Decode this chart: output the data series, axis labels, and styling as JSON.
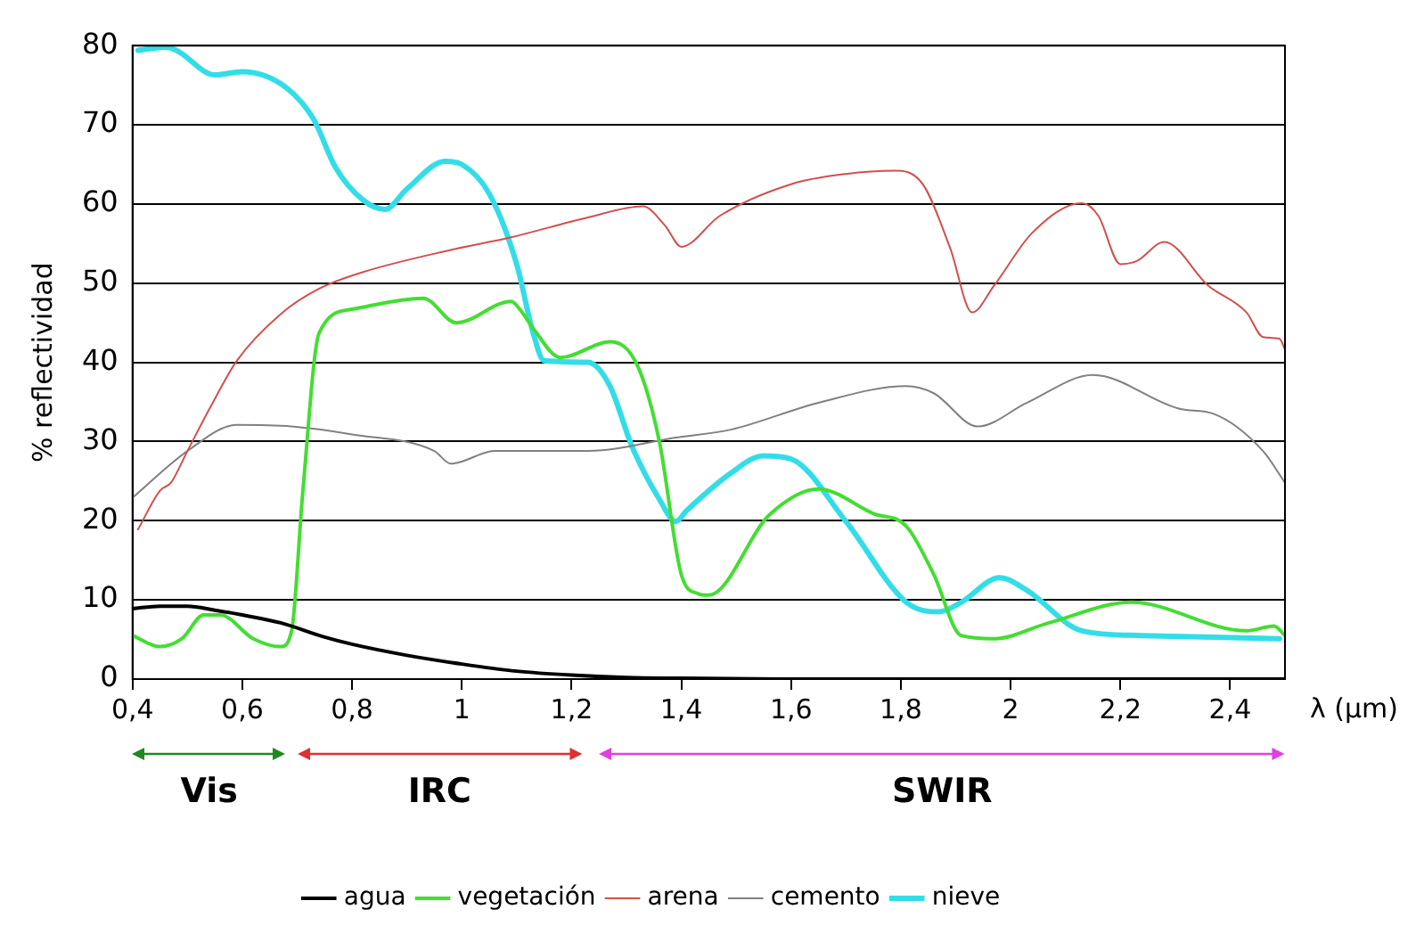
{
  "chart_data": {
    "type": "line",
    "ylabel": "% reflectividad",
    "xlabel": "λ (μm)",
    "xlim": [
      0.4,
      2.5
    ],
    "ylim": [
      0,
      80
    ],
    "xticks": [
      {
        "value": 0.4,
        "label": "0,4"
      },
      {
        "value": 0.6,
        "label": "0,6"
      },
      {
        "value": 0.8,
        "label": "0,8"
      },
      1,
      {
        "value": 1.2,
        "label": "1,2"
      },
      {
        "value": 1.4,
        "label": "1,4"
      },
      {
        "value": 1.6,
        "label": "1,6"
      },
      {
        "value": 1.8,
        "label": "1,8"
      },
      2,
      {
        "value": 2.2,
        "label": "2,2"
      },
      {
        "value": 2.4,
        "label": "2,4"
      }
    ],
    "yticks": [
      0,
      10,
      20,
      30,
      40,
      50,
      60,
      70,
      80
    ],
    "grid": "y",
    "legend": "bottom",
    "marker": "none",
    "line_style": "solid",
    "annotations": [
      "Vis",
      "IRC",
      "SWIR"
    ],
    "series": [
      {
        "name": "agua",
        "color": "#000000",
        "x": [
          0.4,
          0.45,
          0.5,
          0.55,
          0.6,
          0.67,
          0.75,
          0.8,
          0.9,
          1.0,
          1.1,
          1.2,
          1.3,
          1.4,
          1.6,
          2.0,
          2.5
        ],
        "values": [
          8.9,
          9.2,
          9.2,
          8.7,
          8.1,
          7.1,
          5.3,
          4.4,
          3.0,
          1.9,
          1.0,
          0.5,
          0.2,
          0.1,
          0,
          0,
          0
        ]
      },
      {
        "name": "vegetación",
        "color": "#44dd33",
        "x": [
          0.4,
          0.45,
          0.49,
          0.53,
          0.56,
          0.62,
          0.67,
          0.69,
          0.71,
          0.74,
          0.8,
          0.93,
          0.99,
          1.09,
          1.11,
          1.13,
          1.18,
          1.27,
          1.32,
          1.36,
          1.4,
          1.43,
          1.45,
          1.56,
          1.65,
          1.75,
          1.81,
          1.86,
          1.91,
          1.97,
          2.07,
          2.22,
          2.43,
          2.48,
          2.5
        ],
        "values": [
          5.5,
          4.1,
          5.1,
          8.1,
          8.1,
          5.1,
          4.1,
          6.1,
          23.4,
          43.7,
          46.7,
          48.1,
          45,
          47.7,
          46.3,
          44.3,
          40.6,
          42.6,
          39.6,
          30,
          13.2,
          10.8,
          10.6,
          20.7,
          24,
          20.9,
          19.3,
          13.2,
          5.5,
          5.1,
          7.1,
          9.7,
          6.1,
          6.7,
          5.5
        ]
      },
      {
        "name": "arena",
        "color": "#d05050",
        "x": [
          0.41,
          0.45,
          0.47,
          0.5,
          0.54,
          0.59,
          0.67,
          0.74,
          0.82,
          0.98,
          1.09,
          1.23,
          1.33,
          1.37,
          1.4,
          1.47,
          1.6,
          1.7,
          1.79,
          1.84,
          1.89,
          1.93,
          1.97,
          2.04,
          2.13,
          2.16,
          2.2,
          2.23,
          2.28,
          2.36,
          2.43,
          2.46,
          2.49,
          2.5
        ],
        "values": [
          18.9,
          23.8,
          24.8,
          28.8,
          34.1,
          40.2,
          46.1,
          49.3,
          51.4,
          54.2,
          55.8,
          58.3,
          59.7,
          57.3,
          54.6,
          58.5,
          62.5,
          63.8,
          64.2,
          62.5,
          54.4,
          46.3,
          49.7,
          56.4,
          60.1,
          58.5,
          52.4,
          52.8,
          55.2,
          49.7,
          46.3,
          43.2,
          43,
          41.6
        ]
      },
      {
        "name": "cemento",
        "color": "#808080",
        "x": [
          0.4,
          0.5,
          0.59,
          0.69,
          0.8,
          0.95,
          0.98,
          1.06,
          1.23,
          1.39,
          1.49,
          1.65,
          1.81,
          1.86,
          1.94,
          2.03,
          2.15,
          2.31,
          2.37,
          2.46,
          2.5
        ],
        "values": [
          22.9,
          28.8,
          32.1,
          31.9,
          30.9,
          28.8,
          27.2,
          28.8,
          28.8,
          30.5,
          31.5,
          34.9,
          37,
          36.1,
          31.9,
          34.9,
          38.4,
          34.1,
          33.5,
          28.8,
          24.8
        ]
      },
      {
        "name": "nieve",
        "color": "#33dde8",
        "x": [
          0.41,
          0.46,
          0.48,
          0.55,
          0.6,
          0.68,
          0.73,
          0.77,
          0.82,
          0.86,
          0.9,
          0.97,
          1.0,
          1.05,
          1.1,
          1.13,
          1.15,
          1.23,
          1.27,
          1.31,
          1.36,
          1.39,
          1.41,
          1.49,
          1.55,
          1.6,
          1.7,
          1.81,
          1.87,
          1.91,
          1.98,
          2.03,
          2.13,
          2.24,
          2.49
        ],
        "values": [
          79.4,
          79.8,
          79.4,
          76.3,
          76.7,
          74.7,
          70.7,
          64.6,
          60.5,
          59.3,
          61.9,
          65.4,
          65,
          61.3,
          52.4,
          43.7,
          40.2,
          40,
          37,
          29.4,
          22.7,
          19.9,
          21.3,
          26,
          28.2,
          27.8,
          19.9,
          9.7,
          8.5,
          9.7,
          12.8,
          11.2,
          6.1,
          5.5,
          5.1
        ]
      }
    ]
  }
}
